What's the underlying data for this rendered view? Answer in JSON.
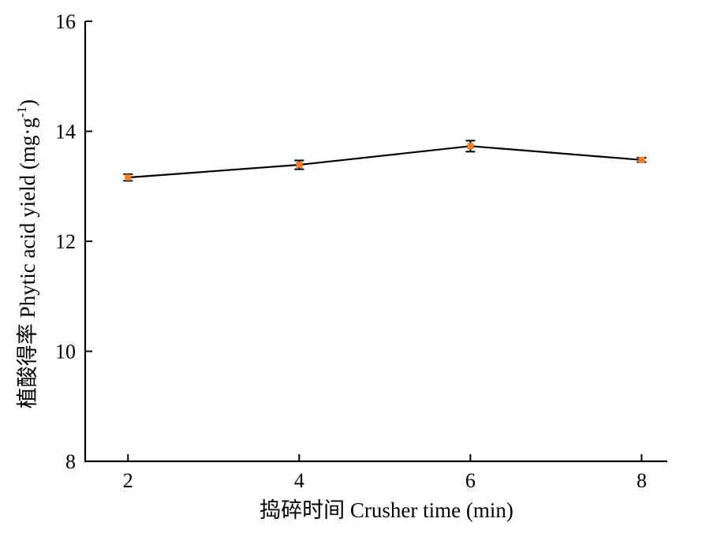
{
  "chart_data": {
    "type": "line",
    "x": [
      2,
      4,
      6,
      8
    ],
    "series": [
      {
        "values": [
          13.16,
          13.39,
          13.73,
          13.48
        ],
        "errors": [
          0.06,
          0.08,
          0.1,
          0.04
        ]
      }
    ],
    "xlabel": "捣碎时间 Crusher time (min)",
    "ylabel_main": "植酸得率 Phytic acid yield (mg·g",
    "ylabel_sup": "-1",
    "ylabel_tail": ")",
    "xlim": [
      1.5,
      8.3
    ],
    "ylim": [
      8,
      16
    ],
    "xticks": [
      2,
      4,
      6,
      8
    ],
    "yticks": [
      8,
      10,
      12,
      14,
      16
    ],
    "grid": false,
    "marker_color": "#f07f2a",
    "line_color": "#000000"
  }
}
